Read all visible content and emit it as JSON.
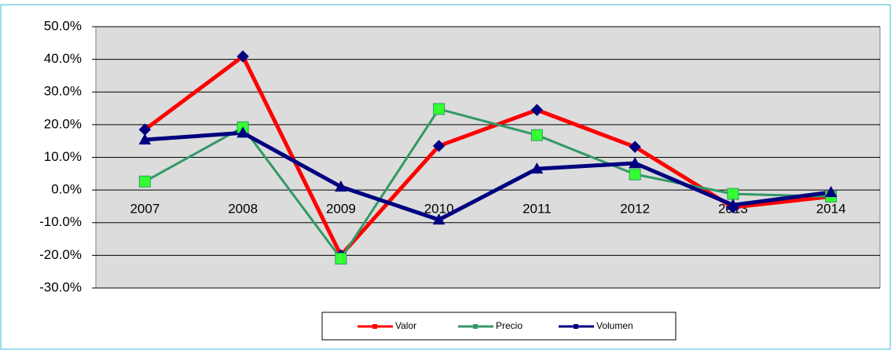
{
  "chart_data": {
    "type": "line",
    "categories": [
      "2007",
      "2008",
      "2009",
      "2010",
      "2011",
      "2012",
      "2013",
      "2014"
    ],
    "series": [
      {
        "name": "Valor",
        "color": "#ff0000",
        "marker": "diamond",
        "values": [
          18.5,
          40.9,
          -20,
          13.5,
          24.5,
          13.2,
          -5.3,
          -2
        ]
      },
      {
        "name": "Precio",
        "color": "#339966",
        "marker": "square",
        "values": [
          2.6,
          19.2,
          -21,
          24.8,
          16.8,
          4.8,
          -1.2,
          -2
        ]
      },
      {
        "name": "Volumen",
        "color": "#000080",
        "marker": "triangle",
        "values": [
          15.4,
          17.5,
          1,
          -9.1,
          6.5,
          8.2,
          -4.6,
          -0.7
        ]
      }
    ],
    "ylim": [
      -30,
      50
    ],
    "yticks": [
      {
        "value": -30,
        "label": "-30.0%"
      },
      {
        "value": -20,
        "label": "-20.0%"
      },
      {
        "value": -10,
        "label": "-10.0%"
      },
      {
        "value": 0,
        "label": "0.0%"
      },
      {
        "value": 10,
        "label": "10.0%"
      },
      {
        "value": 20,
        "label": "20.0%"
      },
      {
        "value": 30,
        "label": "30.0%"
      },
      {
        "value": 40,
        "label": "40.0%"
      },
      {
        "value": 50,
        "label": "50.0%"
      }
    ],
    "grid": true,
    "legend": "bottom"
  }
}
